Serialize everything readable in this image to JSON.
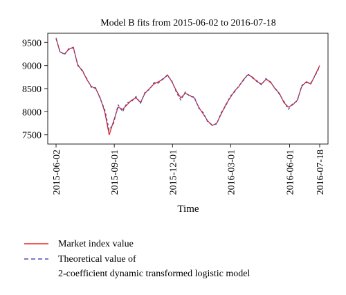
{
  "chart_data": {
    "type": "line",
    "title": "Model B fits from 2015-06-02 to 2016-07-18",
    "xlabel": "Time",
    "ylabel": "",
    "x_range": [
      "2015-06-02",
      "2016-07-18"
    ],
    "ylim": [
      7300,
      9700
    ],
    "y_ticks": [
      7500,
      8000,
      8500,
      9000,
      9500
    ],
    "x_ticks": [
      "2015-06-02",
      "2015-09-01",
      "2015-12-01",
      "2016-03-01",
      "2016-06-01",
      "2016-07-18"
    ],
    "grid": false,
    "legend": {
      "placement": "below",
      "entries": [
        {
          "text": "Market index value"
        },
        {
          "text": "Theoretical value of"
        },
        {
          "text": "2-coefficient dynamic transformed logistic model"
        }
      ]
    },
    "series": [
      {
        "name": "Market index value",
        "color": "#e3261d",
        "style": "solid",
        "x": [
          "2015-06-02",
          "2015-06-08",
          "2015-06-15",
          "2015-06-22",
          "2015-06-29",
          "2015-07-06",
          "2015-07-13",
          "2015-07-20",
          "2015-07-27",
          "2015-08-03",
          "2015-08-10",
          "2015-08-17",
          "2015-08-24",
          "2015-08-31",
          "2015-09-07",
          "2015-09-14",
          "2015-09-21",
          "2015-09-28",
          "2015-10-05",
          "2015-10-12",
          "2015-10-19",
          "2015-10-26",
          "2015-11-02",
          "2015-11-09",
          "2015-11-16",
          "2015-11-23",
          "2015-11-30",
          "2015-12-07",
          "2015-12-14",
          "2015-12-21",
          "2015-12-28",
          "2016-01-04",
          "2016-01-11",
          "2016-01-18",
          "2016-01-25",
          "2016-02-01",
          "2016-02-08",
          "2016-02-15",
          "2016-02-22",
          "2016-02-29",
          "2016-03-07",
          "2016-03-14",
          "2016-03-21",
          "2016-03-28",
          "2016-04-04",
          "2016-04-11",
          "2016-04-18",
          "2016-04-25",
          "2016-05-02",
          "2016-05-09",
          "2016-05-16",
          "2016-05-23",
          "2016-05-30",
          "2016-06-06",
          "2016-06-13",
          "2016-06-20",
          "2016-06-27",
          "2016-07-04",
          "2016-07-11",
          "2016-07-18"
        ],
        "y": [
          9600,
          9300,
          9250,
          9350,
          9400,
          9000,
          8900,
          8700,
          8550,
          8500,
          8300,
          8000,
          7500,
          7800,
          8100,
          8050,
          8150,
          8250,
          8300,
          8200,
          8400,
          8500,
          8600,
          8650,
          8700,
          8800,
          8650,
          8450,
          8300,
          8400,
          8350,
          8300,
          8100,
          7950,
          7800,
          7700,
          7750,
          7950,
          8150,
          8300,
          8450,
          8550,
          8700,
          8800,
          8750,
          8650,
          8600,
          8700,
          8650,
          8500,
          8400,
          8200,
          8100,
          8150,
          8250,
          8550,
          8650,
          8600,
          8800,
          9000
        ]
      },
      {
        "name": "Theoretical value of 2-coefficient dynamic transformed logistic model",
        "color": "#4b4fb5",
        "style": "dashed",
        "x": [
          "2015-06-02",
          "2015-06-08",
          "2015-06-15",
          "2015-06-22",
          "2015-06-29",
          "2015-07-06",
          "2015-07-13",
          "2015-07-20",
          "2015-07-27",
          "2015-08-03",
          "2015-08-10",
          "2015-08-17",
          "2015-08-24",
          "2015-08-31",
          "2015-09-07",
          "2015-09-14",
          "2015-09-21",
          "2015-09-28",
          "2015-10-05",
          "2015-10-12",
          "2015-10-19",
          "2015-10-26",
          "2015-11-02",
          "2015-11-09",
          "2015-11-16",
          "2015-11-23",
          "2015-11-30",
          "2015-12-07",
          "2015-12-14",
          "2015-12-21",
          "2015-12-28",
          "2016-01-04",
          "2016-01-11",
          "2016-01-18",
          "2016-01-25",
          "2016-02-01",
          "2016-02-08",
          "2016-02-15",
          "2016-02-22",
          "2016-02-29",
          "2016-03-07",
          "2016-03-14",
          "2016-03-21",
          "2016-03-28",
          "2016-04-04",
          "2016-04-11",
          "2016-04-18",
          "2016-04-25",
          "2016-05-02",
          "2016-05-09",
          "2016-05-16",
          "2016-05-23",
          "2016-05-30",
          "2016-06-06",
          "2016-06-13",
          "2016-06-20",
          "2016-06-27",
          "2016-07-04",
          "2016-07-11",
          "2016-07-18"
        ],
        "y": [
          9580,
          9320,
          9230,
          9370,
          9380,
          9020,
          8880,
          8720,
          8530,
          8520,
          8280,
          8050,
          7600,
          7750,
          8150,
          8000,
          8200,
          8220,
          8330,
          8180,
          8420,
          8480,
          8630,
          8620,
          8720,
          8780,
          8670,
          8420,
          8250,
          8430,
          8330,
          8320,
          8080,
          7980,
          7780,
          7720,
          7730,
          7980,
          8120,
          8330,
          8430,
          8570,
          8680,
          8820,
          8730,
          8670,
          8580,
          8720,
          8630,
          8520,
          8380,
          8230,
          8050,
          8180,
          8230,
          8570,
          8630,
          8620,
          8780,
          8980
        ]
      }
    ]
  }
}
